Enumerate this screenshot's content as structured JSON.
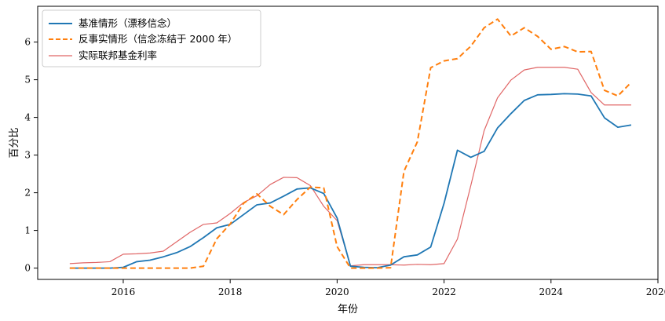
{
  "chart_data": {
    "type": "line",
    "xlabel": "年份",
    "ylabel": "百分比",
    "xlim": [
      2014.4,
      2026.0
    ],
    "ylim": [
      -0.3,
      6.95
    ],
    "xticks": [
      2016,
      2018,
      2020,
      2022,
      2024,
      2026
    ],
    "yticks": [
      0,
      1,
      2,
      3,
      4,
      5,
      6
    ],
    "grid": false,
    "legend_position": "top-left",
    "series": [
      {
        "name": "基准情形（漂移信念）",
        "color": "#1f77b4",
        "style": "solid",
        "x": [
          2015.0,
          2015.25,
          2015.5,
          2015.75,
          2016.0,
          2016.25,
          2016.5,
          2016.75,
          2017.0,
          2017.25,
          2017.5,
          2017.75,
          2018.0,
          2018.25,
          2018.5,
          2018.75,
          2019.0,
          2019.25,
          2019.5,
          2019.75,
          2020.0,
          2020.25,
          2020.5,
          2020.75,
          2021.0,
          2021.25,
          2021.5,
          2021.75,
          2022.0,
          2022.25,
          2022.5,
          2022.75,
          2023.0,
          2023.25,
          2023.5,
          2023.75,
          2024.0,
          2024.25,
          2024.5,
          2024.75,
          2025.0,
          2025.25,
          2025.5
        ],
        "values": [
          0.0,
          0.0,
          0.0,
          0.0,
          0.02,
          0.17,
          0.21,
          0.3,
          0.41,
          0.57,
          0.81,
          1.07,
          1.16,
          1.42,
          1.68,
          1.73,
          1.91,
          2.1,
          2.13,
          1.98,
          1.33,
          0.05,
          0.02,
          0.01,
          0.08,
          0.3,
          0.35,
          0.56,
          1.72,
          3.13,
          2.94,
          3.1,
          3.72,
          4.1,
          4.45,
          4.6,
          4.61,
          4.63,
          4.62,
          4.57,
          3.99,
          3.74,
          3.8
        ]
      },
      {
        "name": "反事实情形（信念冻结于 2000 年）",
        "color": "#ff7f0e",
        "style": "dashed",
        "x": [
          2015.0,
          2015.25,
          2015.5,
          2015.75,
          2016.0,
          2016.25,
          2016.5,
          2016.75,
          2017.0,
          2017.25,
          2017.5,
          2017.75,
          2018.0,
          2018.25,
          2018.5,
          2018.75,
          2019.0,
          2019.25,
          2019.5,
          2019.75,
          2020.0,
          2020.25,
          2020.5,
          2020.75,
          2021.0,
          2021.25,
          2021.5,
          2021.75,
          2022.0,
          2022.25,
          2022.5,
          2022.75,
          2023.0,
          2023.25,
          2023.5,
          2023.75,
          2024.0,
          2024.25,
          2024.5,
          2024.75,
          2025.0,
          2025.25,
          2025.5
        ],
        "values": [
          0.0,
          0.0,
          0.0,
          0.0,
          0.0,
          0.0,
          0.0,
          0.0,
          0.0,
          0.0,
          0.05,
          0.78,
          1.17,
          1.72,
          1.97,
          1.64,
          1.42,
          1.82,
          2.15,
          2.13,
          0.57,
          0.0,
          0.0,
          0.0,
          0.01,
          2.57,
          3.35,
          5.32,
          5.5,
          5.56,
          5.89,
          6.38,
          6.61,
          6.16,
          6.38,
          6.15,
          5.81,
          5.88,
          5.74,
          5.75,
          4.72,
          4.57,
          4.93
        ]
      },
      {
        "name": "实际联邦基金利率",
        "color": "#e06666",
        "style": "solid-thin",
        "x": [
          2015.0,
          2015.25,
          2015.5,
          2015.75,
          2016.0,
          2016.25,
          2016.5,
          2016.75,
          2017.0,
          2017.25,
          2017.5,
          2017.75,
          2018.0,
          2018.25,
          2018.5,
          2018.75,
          2019.0,
          2019.25,
          2019.5,
          2019.75,
          2020.0,
          2020.25,
          2020.5,
          2020.75,
          2021.0,
          2021.25,
          2021.5,
          2021.75,
          2022.0,
          2022.25,
          2022.5,
          2022.75,
          2023.0,
          2023.25,
          2023.5,
          2023.75,
          2024.0,
          2024.25,
          2024.5,
          2024.75,
          2025.0,
          2025.25,
          2025.5
        ],
        "values": [
          0.12,
          0.14,
          0.15,
          0.17,
          0.37,
          0.38,
          0.4,
          0.45,
          0.7,
          0.95,
          1.16,
          1.2,
          1.45,
          1.74,
          1.92,
          2.22,
          2.41,
          2.4,
          2.19,
          1.64,
          1.26,
          0.06,
          0.09,
          0.09,
          0.09,
          0.08,
          0.1,
          0.09,
          0.12,
          0.77,
          2.19,
          3.65,
          4.52,
          4.99,
          5.26,
          5.33,
          5.33,
          5.33,
          5.28,
          4.66,
          4.33,
          4.33,
          4.33
        ]
      }
    ]
  }
}
